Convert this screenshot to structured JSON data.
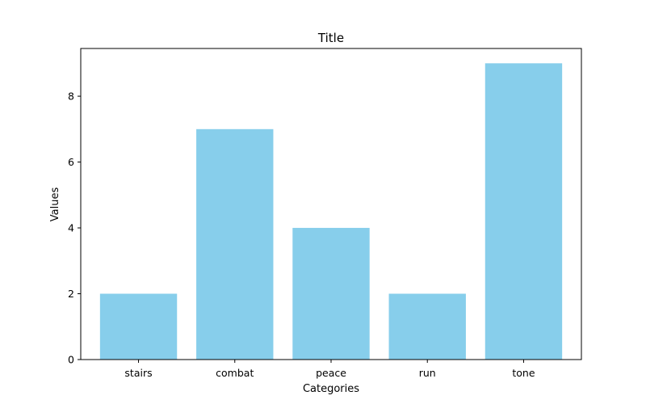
{
  "chart_data": {
    "type": "bar",
    "title": "Title",
    "xlabel": "Categories",
    "ylabel": "Values",
    "categories": [
      "stairs",
      "combat",
      "peace",
      "run",
      "tone"
    ],
    "values": [
      2,
      7,
      4,
      2,
      9
    ],
    "ylim": [
      0,
      9.45
    ],
    "yticks": [
      0,
      2,
      4,
      6,
      8
    ],
    "bar_color": "#87CEEB",
    "grid": false,
    "legend": "none"
  }
}
